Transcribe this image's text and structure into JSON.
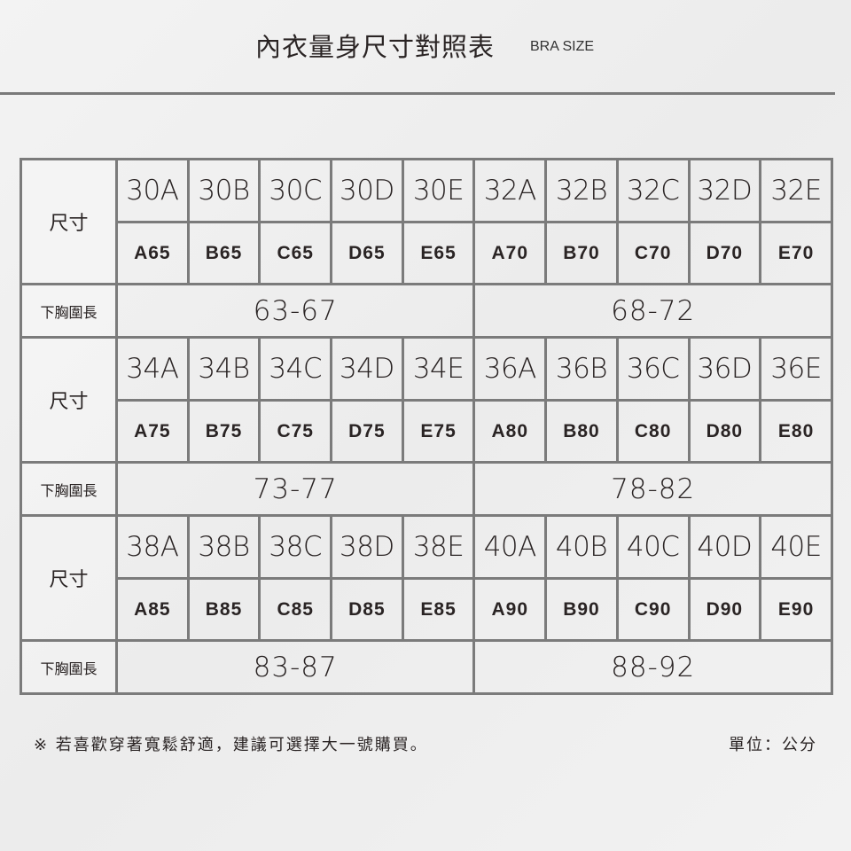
{
  "header": {
    "title": "內衣量身尺寸對照表",
    "subtitle": "BRA SIZE"
  },
  "size_label": "尺寸",
  "band_label": "下胸圍長",
  "blocks": [
    {
      "sizes": [
        "30A",
        "30B",
        "30C",
        "30D",
        "30E",
        "32A",
        "32B",
        "32C",
        "32D",
        "32E"
      ],
      "eu": [
        "A65",
        "B65",
        "C65",
        "D65",
        "E65",
        "A70",
        "B70",
        "C70",
        "D70",
        "E70"
      ],
      "bands": [
        "63-67",
        "68-72"
      ]
    },
    {
      "sizes": [
        "34A",
        "34B",
        "34C",
        "34D",
        "34E",
        "36A",
        "36B",
        "36C",
        "36D",
        "36E"
      ],
      "eu": [
        "A75",
        "B75",
        "C75",
        "D75",
        "E75",
        "A80",
        "B80",
        "C80",
        "D80",
        "E80"
      ],
      "bands": [
        "73-77",
        "78-82"
      ]
    },
    {
      "sizes": [
        "38A",
        "38B",
        "38C",
        "38D",
        "38E",
        "40A",
        "40B",
        "40C",
        "40D",
        "40E"
      ],
      "eu": [
        "A85",
        "B85",
        "C85",
        "D85",
        "E85",
        "A90",
        "B90",
        "C90",
        "D90",
        "E90"
      ],
      "bands": [
        "83-87",
        "88-92"
      ]
    }
  ],
  "footer": {
    "note": "※ 若喜歡穿著寬鬆舒適，建議可選擇大一號購買。",
    "unit": "單位：公分"
  },
  "colors": {
    "border": "#7b7b7b",
    "text": "#2a2424"
  }
}
